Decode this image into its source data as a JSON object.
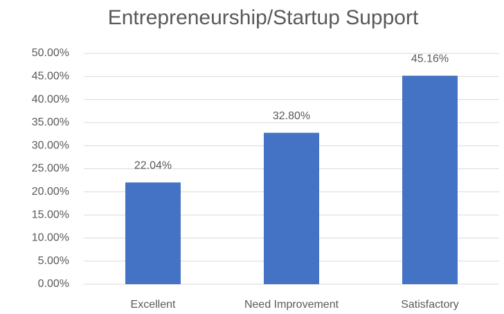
{
  "chart_data": {
    "type": "bar",
    "title": "Entrepreneurship/Startup Support",
    "categories": [
      "Excellent",
      "Need Improvement",
      "Satisfactory"
    ],
    "values": [
      22.04,
      32.8,
      45.16
    ],
    "value_labels": [
      "22.04%",
      "32.80%",
      "45.16%"
    ],
    "color": "#4472c4",
    "ylim": [
      0,
      50
    ],
    "yticks": [
      {
        "value": 0,
        "label": "0.00%"
      },
      {
        "value": 5,
        "label": "5.00%"
      },
      {
        "value": 10,
        "label": "10.00%"
      },
      {
        "value": 15,
        "label": "15.00%"
      },
      {
        "value": 20,
        "label": "20.00%"
      },
      {
        "value": 25,
        "label": "25.00%"
      },
      {
        "value": 30,
        "label": "30.00%"
      },
      {
        "value": 35,
        "label": "35.00%"
      },
      {
        "value": 40,
        "label": "40.00%"
      },
      {
        "value": 45,
        "label": "45.00%"
      },
      {
        "value": 50,
        "label": "50.00%"
      }
    ],
    "grid": true
  }
}
